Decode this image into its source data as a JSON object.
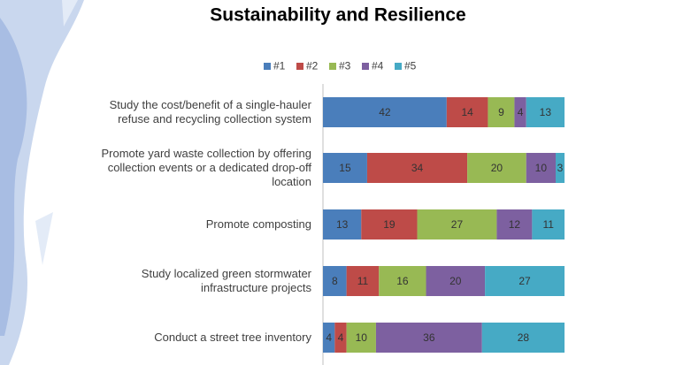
{
  "chart_data": {
    "type": "stacked-bar-horizontal",
    "title": "Sustainability and Resilience",
    "categories": [
      "Study the cost/benefit of a single-hauler refuse and recycling collection system",
      "Promote yard waste collection by offering collection events or a dedicated drop-off location",
      "Promote composting",
      "Study localized green stormwater infrastructure projects",
      "Conduct a street tree inventory"
    ],
    "series": [
      {
        "name": "#1",
        "color": "#4a7ebb",
        "values": [
          42,
          15,
          13,
          8,
          4
        ]
      },
      {
        "name": "#2",
        "color": "#be4b48",
        "values": [
          14,
          34,
          19,
          11,
          4
        ]
      },
      {
        "name": "#3",
        "color": "#98b954",
        "values": [
          9,
          20,
          27,
          16,
          10
        ]
      },
      {
        "name": "#4",
        "color": "#7d60a0",
        "values": [
          4,
          10,
          12,
          20,
          36
        ]
      },
      {
        "name": "#5",
        "color": "#46aac5",
        "values": [
          13,
          3,
          11,
          27,
          28
        ]
      }
    ],
    "legend": "top"
  }
}
